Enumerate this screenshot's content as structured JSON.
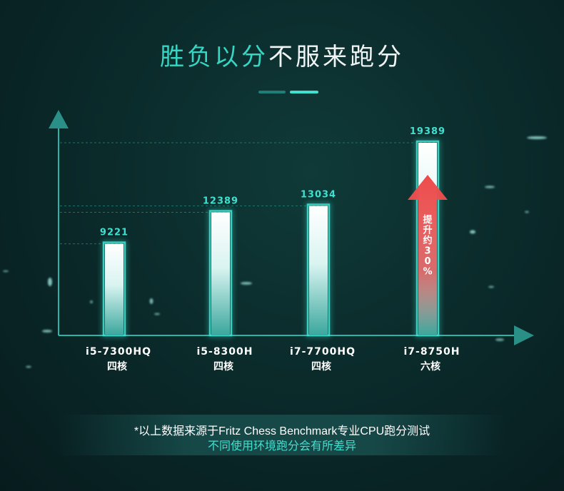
{
  "header": {
    "title_accent": "胜负以分",
    "title_rest": "不服来跑分"
  },
  "chart_data": {
    "type": "bar",
    "categories": [
      "i5-7300HQ\n四核",
      "i5-8300H\n四核",
      "i7-7700HQ\n四核",
      "i7-8750H\n六核"
    ],
    "category_lines": [
      [
        "i5-7300HQ",
        "四核"
      ],
      [
        "i5-8300H",
        "四核"
      ],
      [
        "i7-7700HQ",
        "四核"
      ],
      [
        "i7-8750H",
        "六核"
      ]
    ],
    "values": [
      9221,
      12389,
      13034,
      19389
    ],
    "value_labels": [
      "9221",
      "12389",
      "13034",
      "19389"
    ],
    "annotation": {
      "target_index": 3,
      "chars": [
        "提",
        "升",
        "约",
        "3",
        "0",
        "%"
      ]
    },
    "title": "",
    "xlabel": "",
    "ylabel": "",
    "ylim": [
      0,
      20500
    ],
    "grid": "dashed lines at bar tops",
    "legend": "none",
    "colors": {
      "bar_glow": "#3fe0cf",
      "label": "#3fe0cf",
      "axis": "#2bb5a8",
      "arrow": "#e24a48"
    }
  },
  "footer": {
    "line1": "*以上数据来源于Fritz Chess Benchmark专业CPU跑分测试",
    "line2": "不同使用环境跑分会有所差异"
  }
}
